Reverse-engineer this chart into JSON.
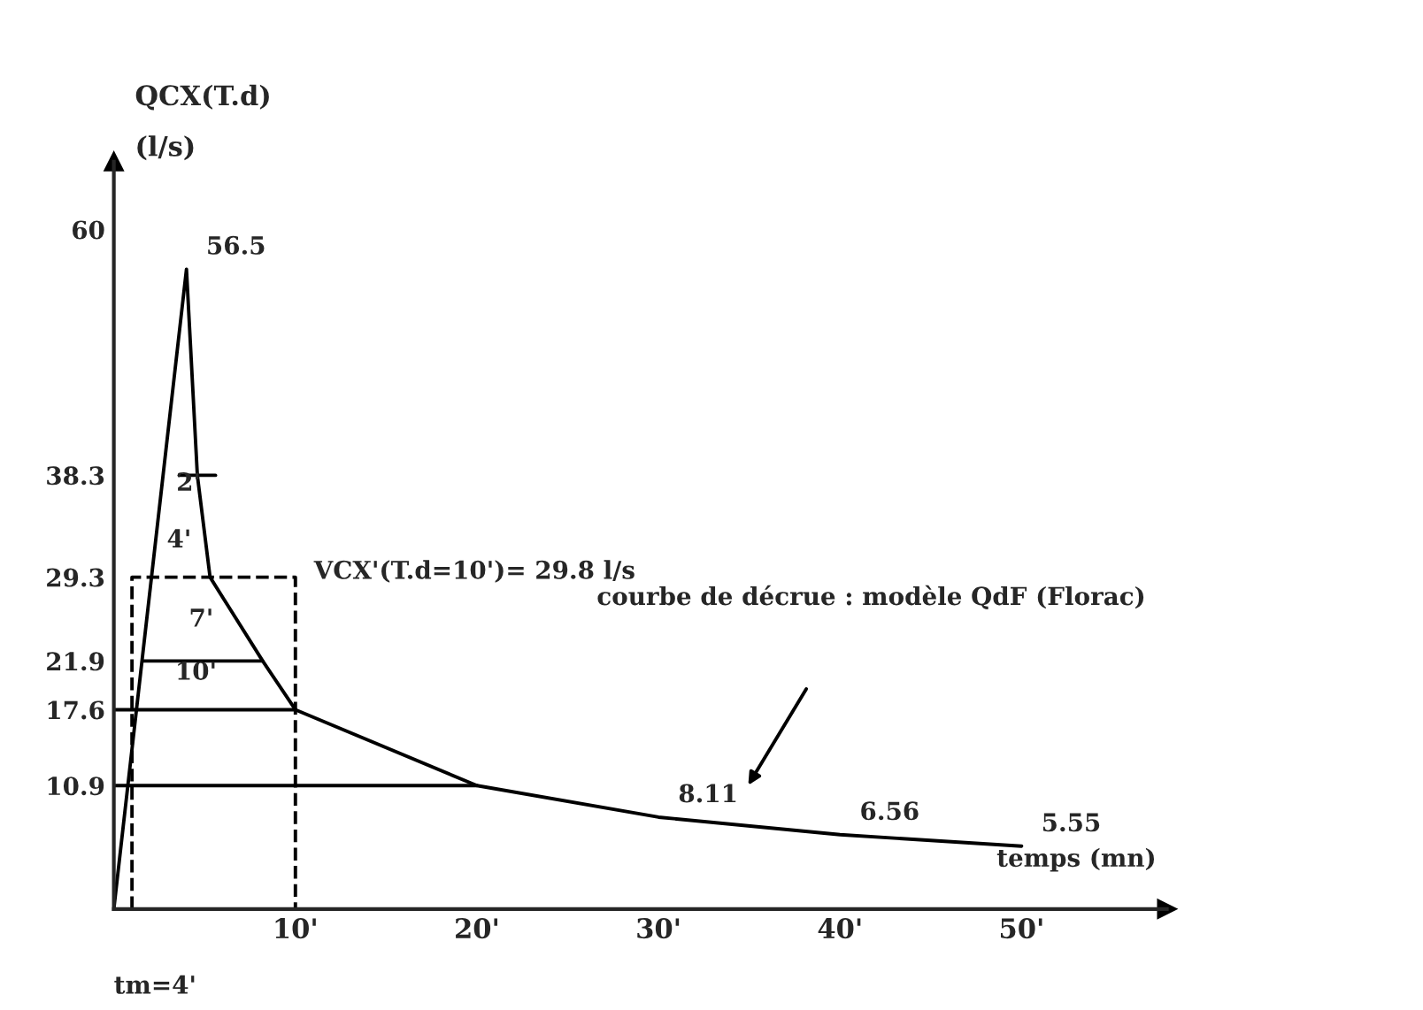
{
  "chart_data": {
    "type": "line",
    "ylabel": "QCX(T.d)\n(l/s)",
    "xlabel": "temps (mn)",
    "xlim": [
      0,
      58
    ],
    "ylim": [
      0,
      66
    ],
    "xticks": [
      {
        "value": 10,
        "label": "10'"
      },
      {
        "value": 20,
        "label": "20'"
      },
      {
        "value": 30,
        "label": "30'"
      },
      {
        "value": 40,
        "label": "40'"
      },
      {
        "value": 50,
        "label": "50'"
      }
    ],
    "yticks": [
      10.9,
      17.6,
      21.9,
      29.3,
      38.3,
      60
    ],
    "grid": false,
    "marker": "none",
    "series": [
      {
        "color": "#000000",
        "line_style": "solid",
        "x": [
          0,
          4,
          4.6,
          5.3,
          8.2,
          10,
          20,
          30,
          40,
          50
        ],
        "values": [
          0,
          56.5,
          38.3,
          29.3,
          21.9,
          17.6,
          10.9,
          8.11,
          6.56,
          5.55
        ],
        "value_labels": [
          null,
          "56.5",
          null,
          null,
          null,
          null,
          null,
          "8.11",
          "6.56",
          "5.55"
        ]
      },
      {
        "color": "#000000",
        "line_style": "dashed",
        "x": [
          1,
          1,
          10,
          10
        ],
        "values": [
          0,
          29.3,
          29.3,
          0
        ]
      },
      {
        "color": "#000000",
        "line_style": "solid",
        "x": [
          3.6,
          5.6
        ],
        "values": [
          38.3,
          38.3
        ]
      },
      {
        "color": "#000000",
        "line_style": "solid",
        "x": [
          1.6,
          8.2
        ],
        "values": [
          21.9,
          21.9
        ]
      },
      {
        "color": "#000000",
        "line_style": "solid",
        "x": [
          0,
          10
        ],
        "values": [
          17.6,
          17.6
        ]
      },
      {
        "color": "#000000",
        "line_style": "solid",
        "x": [
          0,
          20
        ],
        "values": [
          10.9,
          10.9
        ]
      }
    ],
    "annotations": [
      "2'",
      "4'",
      "7'",
      "10'",
      "VCX'(T.d=10')= 29.8 l/s",
      "courbe de décrue : modèle QdF (Florac)",
      "tm=4'"
    ]
  }
}
